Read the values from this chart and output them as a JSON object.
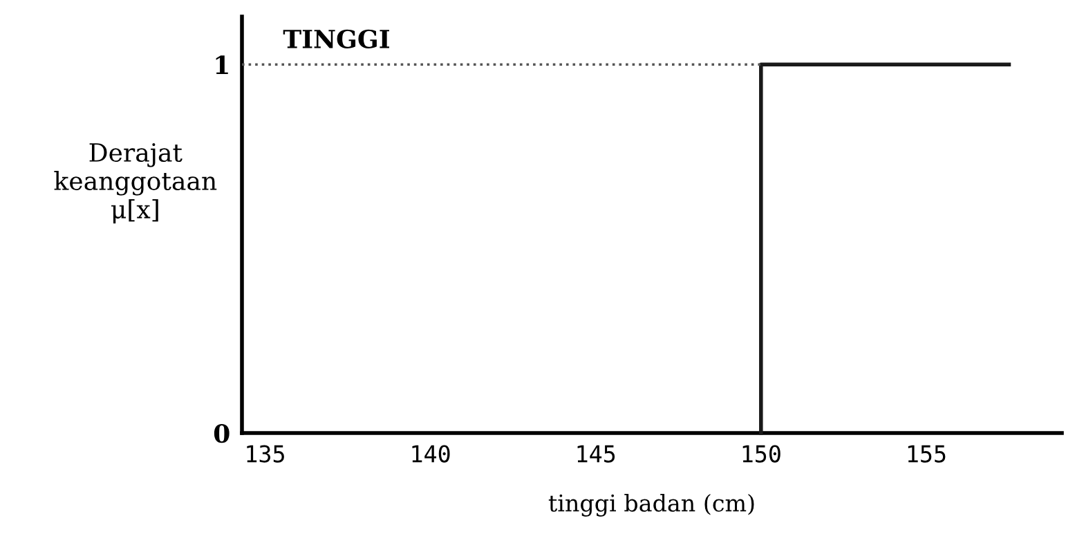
{
  "chart_data": {
    "type": "line",
    "title": "TINGGI",
    "xlabel": "tinggi badan (cm)",
    "ylabel": "Derajat\nkeanggotaan\nμ[x]",
    "xlim": [
      134.3,
      159.1
    ],
    "xticks": [
      135,
      140,
      145,
      150,
      155
    ],
    "ylim": [
      0,
      1.13
    ],
    "yticks": [
      0,
      1
    ],
    "series": [
      {
        "x": [
          150,
          150,
          157.5
        ],
        "values": [
          0,
          1,
          1
        ],
        "color": "#1a1a1a",
        "line_style": "solid"
      },
      {
        "x": [
          134.3,
          150
        ],
        "values": [
          1,
          1
        ],
        "color": "#555555",
        "line_style": "dotted"
      }
    ],
    "grid": false,
    "legend": false,
    "marker": "none"
  }
}
